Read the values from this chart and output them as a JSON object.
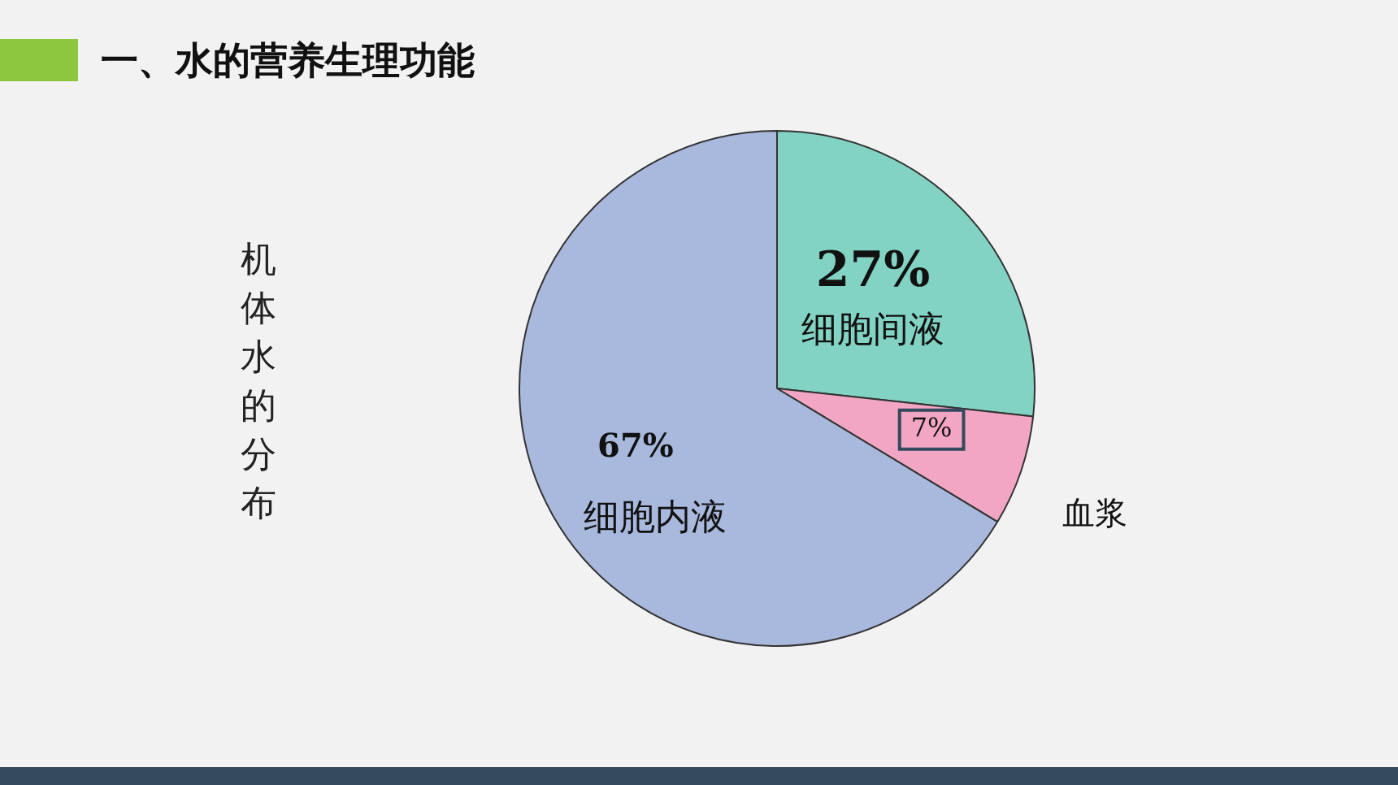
{
  "chart_data": {
    "type": "pie",
    "title": "一、水的营养生理功能",
    "ylabel": "机体水的分布",
    "categories": [
      "细胞间液",
      "血浆",
      "细胞内液"
    ],
    "values": [
      27,
      7,
      67
    ],
    "value_labels": [
      "27%",
      "7%",
      "67%"
    ],
    "colors": [
      "#82d3c4",
      "#f2a6c4",
      "#a9b9dd"
    ],
    "legend": false
  }
}
